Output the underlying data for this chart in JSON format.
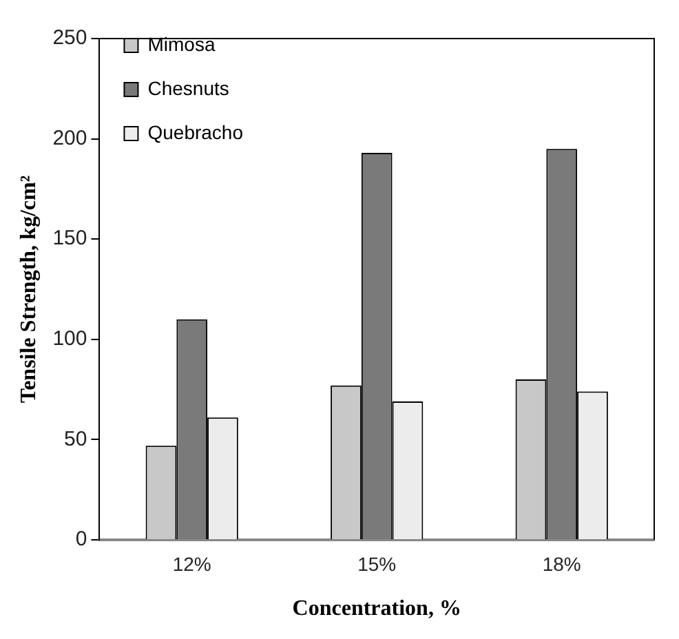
{
  "chart_data": {
    "type": "bar",
    "xlabel": "Concentration, %",
    "ylabel": "Tensile Strength, kg/cm²",
    "categories": [
      "12%",
      "15%",
      "18%"
    ],
    "series": [
      {
        "name": "Mimosa",
        "color": "#c8c8c8",
        "values": [
          47,
          77,
          80
        ]
      },
      {
        "name": "Chesnuts",
        "color": "#7a7a7a",
        "values": [
          110,
          193,
          195
        ]
      },
      {
        "name": "Quebracho",
        "color": "#ececec",
        "values": [
          61,
          69,
          74
        ]
      }
    ],
    "ylim": [
      0,
      250
    ],
    "yticks": [
      0,
      50,
      100,
      150,
      200,
      250
    ],
    "grid": false,
    "legend": "top left"
  }
}
